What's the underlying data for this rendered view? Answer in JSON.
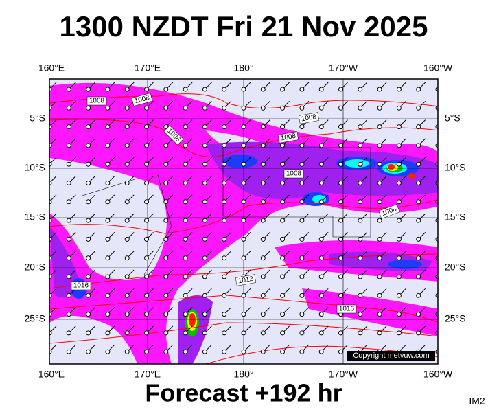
{
  "header": {
    "title": "1300 NZDT Fri 21 Nov 2025"
  },
  "map": {
    "lon_labels": [
      "160°E",
      "170°E",
      "180°",
      "170°W",
      "160°W"
    ],
    "lat_labels": [
      "5°S",
      "10°S",
      "15°S",
      "20°S",
      "25°S"
    ],
    "isobar_labels": [
      "1008",
      "1008",
      "1008",
      "1008",
      "1008",
      "1008",
      "1008",
      "1012",
      "1016",
      "1016"
    ],
    "copyright": "Copyright metvuw.com"
  },
  "footer": {
    "forecast": "Forecast +192 hr",
    "code": "IM2"
  }
}
